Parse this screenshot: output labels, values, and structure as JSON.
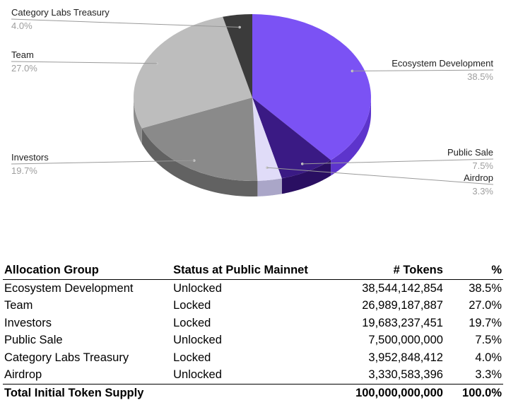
{
  "chart_data": [
    {
      "type": "pie",
      "slices": [
        {
          "label": "Ecosystem Development",
          "value": 38.5,
          "pct_label": "38.5%",
          "color": "#7b52f4",
          "side_color": "#5d34cc"
        },
        {
          "label": "Public Sale",
          "value": 7.5,
          "pct_label": "7.5%",
          "color": "#3a1a84",
          "side_color": "#2a0f62"
        },
        {
          "label": "Airdrop",
          "value": 3.3,
          "pct_label": "3.3%",
          "color": "#e0dcf8",
          "side_color": "#aaa6c8"
        },
        {
          "label": "Investors",
          "value": 19.7,
          "pct_label": "19.7%",
          "color": "#8a8a8a",
          "side_color": "#626262"
        },
        {
          "label": "Team",
          "value": 27.0,
          "pct_label": "27.0%",
          "color": "#bdbdbd",
          "side_color": "#8c8c8c"
        },
        {
          "label": "Category Labs Treasury",
          "value": 4.0,
          "pct_label": "4.0%",
          "color": "#3b3b3b",
          "side_color": "#222222"
        }
      ],
      "legend": "leader-line labels"
    },
    {
      "type": "table",
      "columns": [
        "Allocation Group",
        "Status at Public Mainnet",
        "# Tokens",
        "%"
      ],
      "rows": [
        [
          "Ecosystem Development",
          "Unlocked",
          "38,544,142,854",
          "38.5%"
        ],
        [
          "Team",
          "Locked",
          "26,989,187,887",
          "27.0%"
        ],
        [
          "Investors",
          "Locked",
          "19,683,237,451",
          "19.7%"
        ],
        [
          "Public Sale",
          "Unlocked",
          "7,500,000,000",
          "7.5%"
        ],
        [
          "Category Labs Treasury",
          "Locked",
          "3,952,848,412",
          "4.0%"
        ],
        [
          "Airdrop",
          "Unlocked",
          "3,330,583,396",
          "3.3%"
        ]
      ],
      "total": [
        "Total Initial Token Supply",
        "",
        "100,000,000,000",
        "100.0%"
      ]
    }
  ]
}
